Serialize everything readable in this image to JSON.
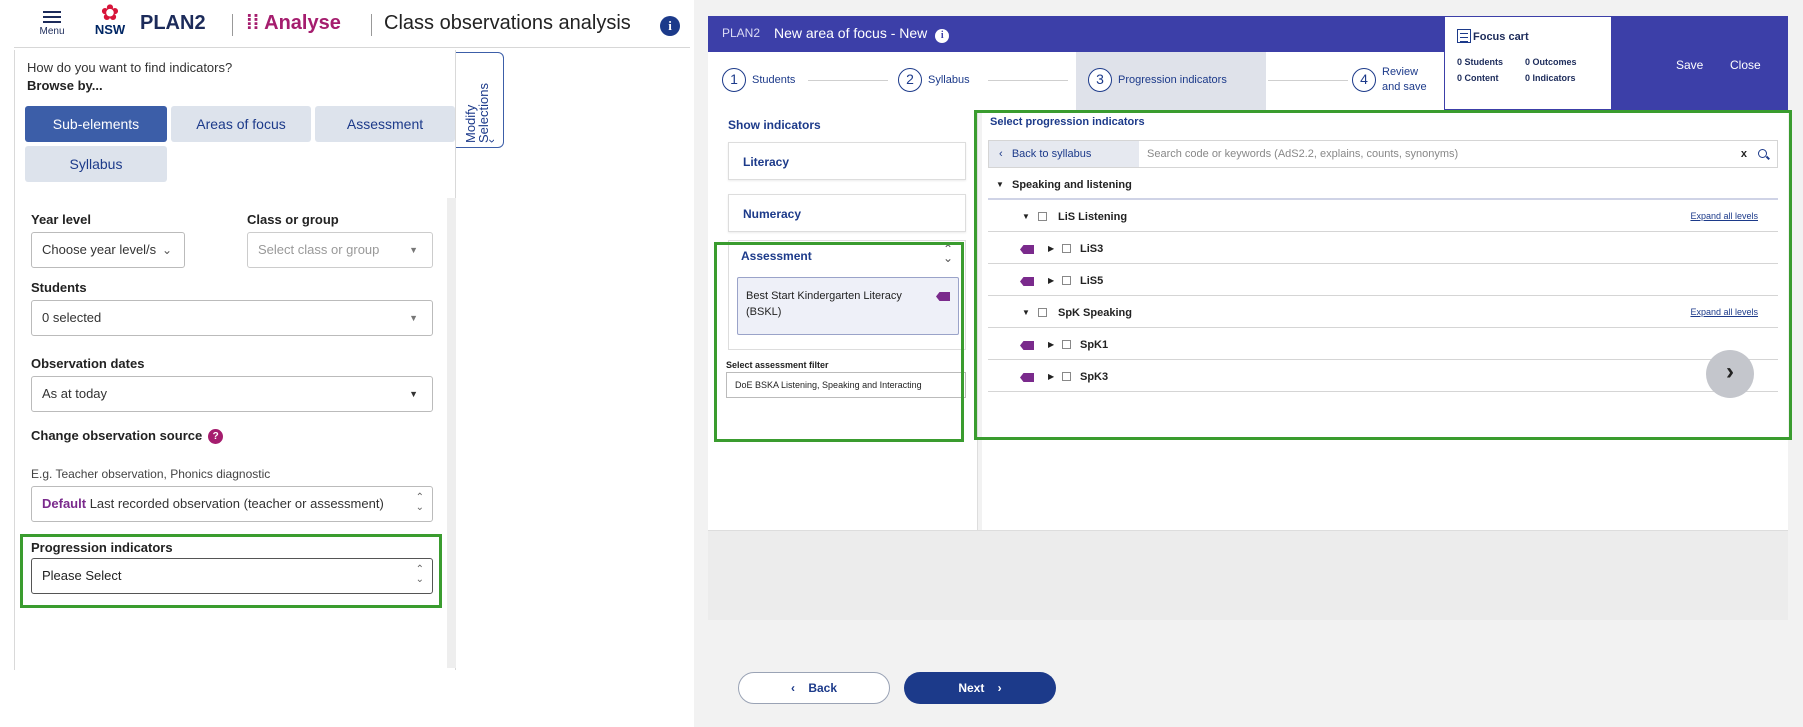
{
  "left": {
    "header": {
      "menu_label": "Menu",
      "logo_text": "NSW",
      "app_name": "PLAN2",
      "module": "Analyse",
      "page_title": "Class observations analysis",
      "info_glyph": "i"
    },
    "browse": {
      "question": "How do you want to find indicators?",
      "browse_by": "Browse by...",
      "tabs": [
        "Sub-elements",
        "Areas of focus",
        "Assessment",
        "Syllabus"
      ],
      "active_tab": "Sub-elements"
    },
    "modify_tab": {
      "label": "Modify Selections",
      "arrow": "‹"
    },
    "fields": {
      "year_level_label": "Year level",
      "year_level_value": "Choose year level/s",
      "class_label": "Class or group",
      "class_placeholder": "Select class or group",
      "students_label": "Students",
      "students_value": "0 selected",
      "dates_label": "Observation dates",
      "dates_value": "As at today",
      "source_label": "Change observation source",
      "source_help": "?",
      "source_hint": "E.g. Teacher observation, Phonics diagnostic",
      "source_default": "Default",
      "source_value": "Last recorded observation (teacher or assessment)",
      "progression_label": "Progression indicators",
      "progression_value": "Please Select"
    }
  },
  "right": {
    "header": {
      "app": "PLAN2",
      "title": "New area of focus - New",
      "info_glyph": "i",
      "save": "Save",
      "close": "Close"
    },
    "steps": [
      {
        "num": "1",
        "label": "Students"
      },
      {
        "num": "2",
        "label": "Syllabus"
      },
      {
        "num": "3",
        "label": "Progression indicators"
      },
      {
        "num": "4",
        "label_1": "Review",
        "label_2": "and save"
      }
    ],
    "active_step": 3,
    "cart": {
      "title": "Focus cart",
      "students": "0 Students",
      "outcomes": "0 Outcomes",
      "content": "0 Content",
      "indicators": "0 Indicators"
    },
    "show_indicators": {
      "title": "Show indicators",
      "literacy": "Literacy",
      "numeracy": "Numeracy",
      "assessment": "Assessment",
      "assessment_item": "Best Start Kindergarten Literacy (BSKL)",
      "filter_label": "Select assessment filter",
      "filter_value": "DoE BSKA Listening, Speaking and Interacting"
    },
    "progression": {
      "title": "Select progression indicators",
      "back": "Back to syllabus",
      "search_placeholder": "Search code or keywords (AdS2.2, explains, counts, synonyms)",
      "clear": "x",
      "section": "Speaking and listening",
      "group_1": "LiS Listening",
      "group_1_items": [
        "LiS3",
        "LiS5"
      ],
      "group_2": "SpK Speaking",
      "group_2_items": [
        "SpK1",
        "SpK3"
      ],
      "expand_all": "Expand all levels"
    },
    "footer": {
      "back": "Back",
      "next": "Next"
    }
  },
  "colors": {
    "brand_navy": "#1c3a8a",
    "header_indigo": "#3c3fa8",
    "analyse_magenta": "#a51d6e",
    "highlight_green": "#3a9c2f",
    "tag_purple": "#7a2a8c"
  },
  "icons": [
    "menu-icon",
    "nsw-waratah-icon",
    "info-icon",
    "help-icon",
    "chevron-down-icon",
    "caret-down-icon",
    "sort-icon",
    "search-icon",
    "tag-icon",
    "expand-triangle-icon",
    "collapse-triangle-icon",
    "chevron-right-icon",
    "chevron-left-icon",
    "focus-cart-icon"
  ]
}
